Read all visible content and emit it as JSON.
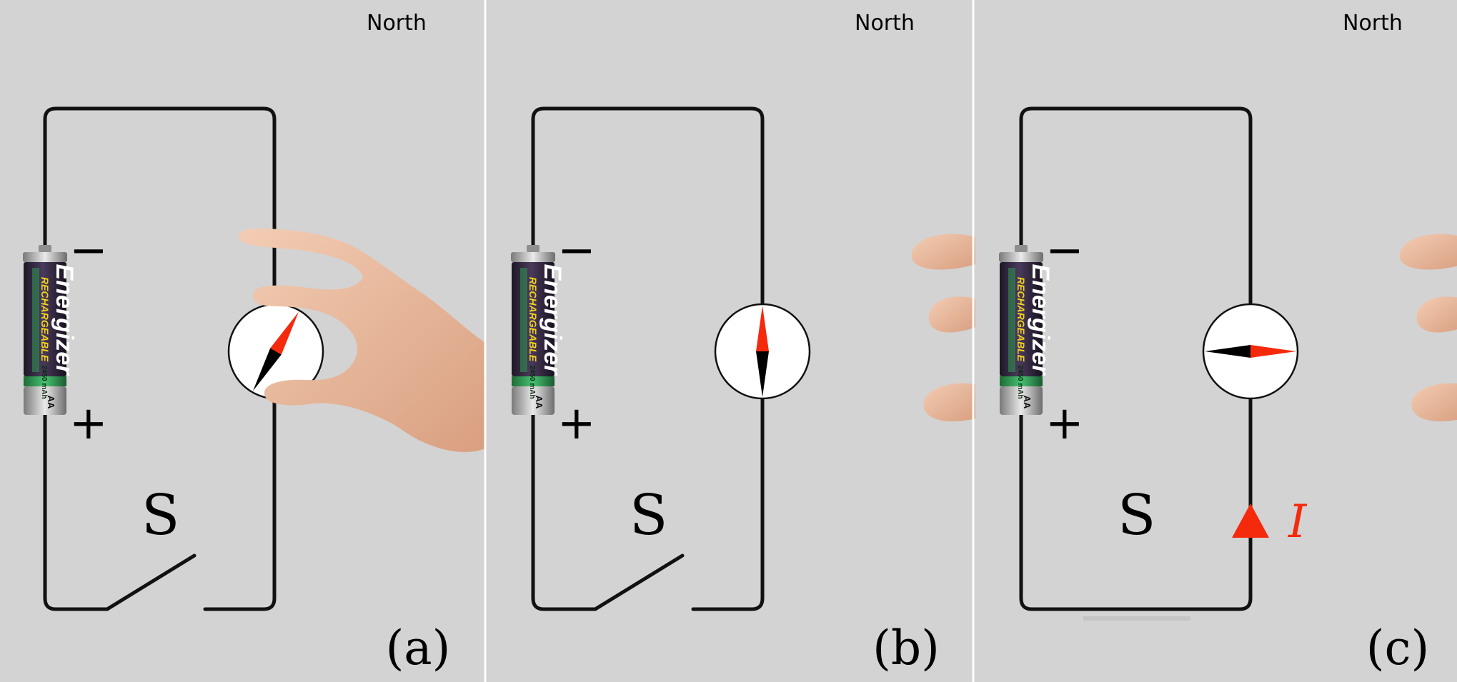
{
  "labels": {
    "north": "North",
    "minus": "−",
    "plus": "+",
    "switch": "S",
    "current": "I"
  },
  "battery": {
    "brand": "Energizer",
    "type": "RECHARGEABLE",
    "capacity": "2450 mAh",
    "size": "AA"
  },
  "panels": [
    {
      "id": "a",
      "label": "(a)",
      "switch_state": "open",
      "needle_deg": 30,
      "hand": "holding-compass"
    },
    {
      "id": "b",
      "label": "(b)",
      "switch_state": "open",
      "needle_deg": 0,
      "hand": "fingertips"
    },
    {
      "id": "c",
      "label": "(c)",
      "switch_state": "closed",
      "needle_deg": 90,
      "hand": "fingertips",
      "current_arrow": "up"
    }
  ],
  "colors": {
    "background": "#d3d3d3",
    "wire": "#111111",
    "needle_north": "#f52a0d",
    "needle_south": "#000000",
    "current": "#f52a0d",
    "skin": "#e7b89b",
    "battery_body": "#3b2b4a",
    "battery_band": "#2f9a52"
  }
}
